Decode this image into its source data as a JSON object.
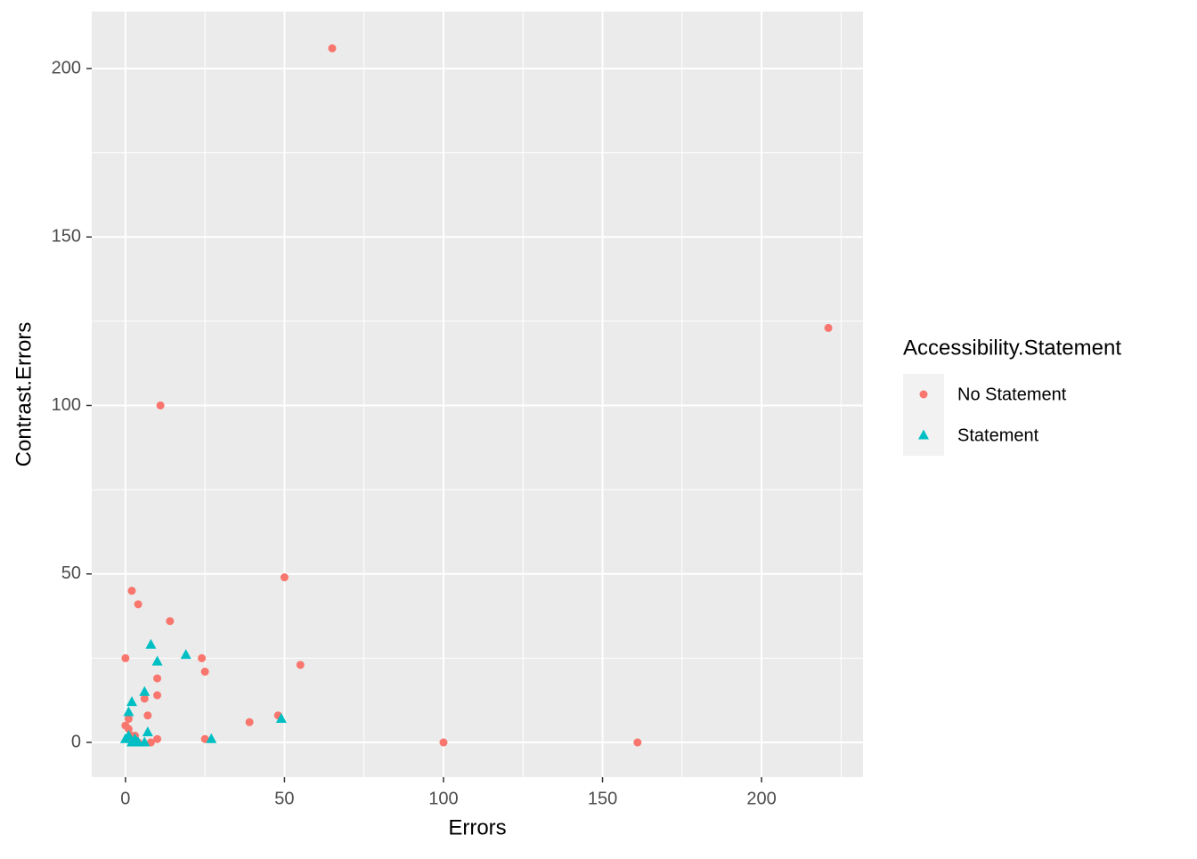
{
  "chart_data": {
    "type": "scatter",
    "x_label": "Errors",
    "y_label": "Contrast.Errors",
    "legend_title": "Accessibility.Statement",
    "legend": "right",
    "xlim": [
      -10.6,
      231.9
    ],
    "ylim": [
      -10.3,
      216.9
    ],
    "xticks": [
      0,
      50,
      100,
      150,
      200
    ],
    "yticks": [
      0,
      50,
      100,
      150,
      200
    ],
    "x_minor_grid": [
      25,
      75,
      125,
      175,
      225
    ],
    "y_minor_grid": [
      25,
      75,
      125,
      175
    ],
    "grid": true,
    "series": [
      {
        "name": "No Statement",
        "color": "#F8766D",
        "shape": "circle",
        "x": [
          65,
          221,
          11,
          50,
          2,
          4,
          14,
          0,
          24,
          55,
          25,
          10,
          10,
          6,
          7,
          39,
          48,
          0,
          1,
          1,
          2,
          3,
          25,
          10,
          8,
          100,
          161,
          4,
          1
        ],
        "values": [
          206,
          123,
          100,
          49,
          45,
          41,
          36,
          25,
          25,
          23,
          21,
          19,
          14,
          13,
          8,
          6,
          8,
          5,
          7,
          4,
          2,
          2,
          1,
          1,
          0,
          0,
          0,
          0,
          1
        ]
      },
      {
        "name": "Statement",
        "color": "#00BFC4",
        "shape": "triangle",
        "x": [
          8,
          19,
          10,
          6,
          2,
          1,
          49,
          7,
          1,
          27,
          0,
          2,
          3,
          6,
          4
        ],
        "values": [
          29,
          26,
          24,
          15,
          12,
          9,
          7,
          3,
          2,
          1,
          1,
          0,
          1,
          0,
          0
        ]
      }
    ]
  }
}
